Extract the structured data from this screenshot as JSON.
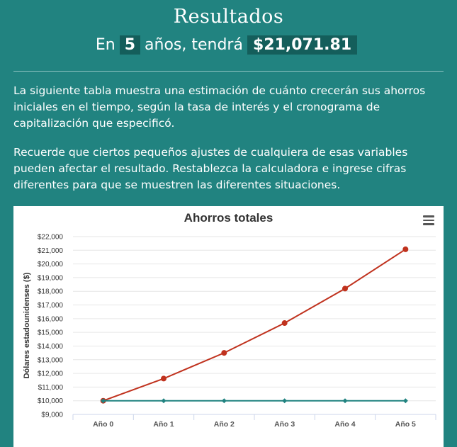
{
  "header": {
    "title": "Resultados",
    "prefix": "En",
    "years": "5",
    "middle": "años, tendrá",
    "amount": "$21,071.81"
  },
  "body": {
    "paragraph1": "La siguiente tabla muestra una estimación de cuánto crecerán sus ahorros iniciales en el tiempo, según la tasa de interés y el cronograma de capitalización que especificó.",
    "paragraph2": "Recuerde que ciertos pequeños ajustes de cualquiera de esas variables pueden afectar el resultado. Restablezca la calculadora e ingrese cifras diferentes para que se muestren las diferentes situaciones."
  },
  "chart_menu_icon": "hamburger-menu-icon",
  "chart_data": {
    "type": "line",
    "title": "Ahorros totales",
    "ylabel": "Dólares estadounidenses ($)",
    "xlabel": "",
    "categories": [
      "Año 0",
      "Año 1",
      "Año 2",
      "Año 3",
      "Año 4",
      "Año 5"
    ],
    "ylim": [
      9000,
      22000
    ],
    "yticks": [
      9000,
      10000,
      11000,
      12000,
      13000,
      14000,
      15000,
      16000,
      17000,
      18000,
      19000,
      20000,
      21000,
      22000
    ],
    "ytick_labels": [
      "$9,000",
      "$10,000",
      "$11,000",
      "$12,000",
      "$13,000",
      "$14,000",
      "$15,000",
      "$16,000",
      "$17,000",
      "$18,000",
      "$19,000",
      "$20,000",
      "$21,000",
      "$22,000"
    ],
    "grid": true,
    "series": [
      {
        "color": "#c0321e",
        "values": [
          10000,
          11620,
          13500,
          15680,
          18200,
          21071.81
        ]
      },
      {
        "color": "#218380",
        "values": [
          10000,
          10000,
          10000,
          10000,
          10000,
          10000
        ]
      }
    ]
  }
}
